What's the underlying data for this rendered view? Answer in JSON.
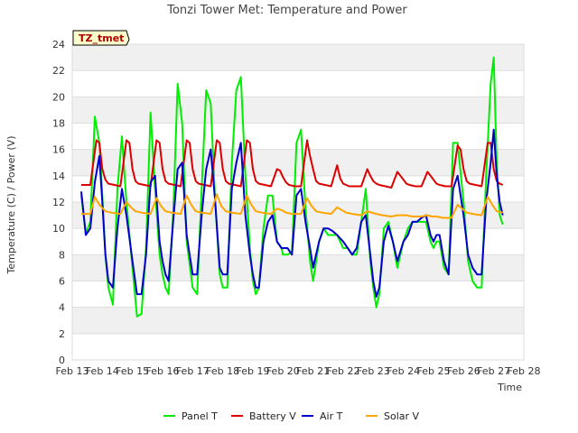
{
  "chart_data": {
    "type": "line",
    "title": "Tonzi Tower Met: Temperature and Power",
    "xlabel": "Time",
    "ylabel": "Temperature (C) / Power (V)",
    "site_label": "TZ_tmet",
    "ylim": [
      0,
      24
    ],
    "yticks": [
      0,
      2,
      4,
      6,
      8,
      10,
      12,
      14,
      16,
      18,
      20,
      22,
      24
    ],
    "xlim": [
      0,
      15
    ],
    "xticks": [
      "Feb 13",
      "Feb 14",
      "Feb 15",
      "Feb 16",
      "Feb 17",
      "Feb 18",
      "Feb 19",
      "Feb 20",
      "Feb 21",
      "Feb 22",
      "Feb 23",
      "Feb 24",
      "Feb 25",
      "Feb 26",
      "Feb 27",
      "Feb 28"
    ],
    "x_units": "days since Feb 13",
    "legend_position": "bottom",
    "series": [
      {
        "name": "Panel T",
        "color": "#00ee00",
        "x": [
          0.3,
          0.45,
          0.6,
          0.75,
          0.9,
          1.0,
          1.1,
          1.2,
          1.35,
          1.5,
          1.65,
          1.8,
          2.0,
          2.15,
          2.3,
          2.45,
          2.6,
          2.75,
          2.9,
          3.0,
          3.1,
          3.2,
          3.35,
          3.5,
          3.65,
          3.8,
          4.0,
          4.15,
          4.3,
          4.45,
          4.6,
          4.75,
          4.9,
          5.0,
          5.15,
          5.3,
          5.45,
          5.6,
          5.75,
          5.9,
          6.0,
          6.1,
          6.2,
          6.35,
          6.5,
          6.65,
          6.8,
          6.95,
          7.0,
          7.15,
          7.3,
          7.45,
          7.6,
          7.75,
          7.9,
          8.0,
          8.1,
          8.2,
          8.35,
          8.5,
          8.65,
          8.8,
          9.0,
          9.15,
          9.3,
          9.45,
          9.6,
          9.75,
          9.9,
          10.0,
          10.1,
          10.2,
          10.35,
          10.5,
          10.65,
          10.8,
          11.0,
          11.15,
          11.3,
          11.45,
          11.6,
          11.75,
          11.9,
          12.0,
          12.1,
          12.2,
          12.35,
          12.5,
          12.65,
          12.8,
          13.0,
          13.15,
          13.3,
          13.45,
          13.6,
          13.75,
          13.9,
          14.0,
          14.1,
          14.2,
          14.3
        ],
        "values": [
          12.5,
          9.6,
          10.5,
          18.5,
          16.5,
          12.5,
          8.0,
          5.5,
          4.2,
          13.0,
          17.0,
          12.0,
          7.0,
          3.3,
          3.5,
          8.5,
          18.8,
          13.0,
          8.0,
          6.5,
          5.5,
          5.0,
          11.0,
          21.0,
          18.0,
          9.0,
          5.5,
          5.0,
          13.0,
          20.5,
          19.5,
          12.0,
          6.5,
          5.5,
          5.5,
          15.0,
          20.5,
          21.5,
          14.0,
          8.5,
          6.0,
          5.0,
          5.5,
          10.0,
          12.5,
          12.5,
          9.0,
          8.5,
          8.0,
          8.0,
          8.2,
          16.5,
          17.5,
          11.5,
          7.5,
          6.0,
          7.5,
          9.0,
          10.0,
          9.5,
          9.5,
          9.5,
          8.5,
          8.5,
          8.0,
          8.0,
          10.5,
          13.0,
          7.5,
          5.5,
          4.0,
          5.0,
          10.0,
          10.5,
          9.0,
          7.0,
          9.0,
          10.0,
          10.5,
          10.5,
          10.5,
          10.5,
          9.0,
          8.5,
          9.0,
          9.0,
          7.0,
          6.5,
          16.5,
          16.5,
          12.0,
          7.5,
          6.0,
          5.5,
          5.5,
          14.0,
          21.0,
          23.0,
          15.0,
          11.0,
          10.3
        ]
      },
      {
        "name": "Battery V",
        "color": "#dd0000",
        "x": [
          0.3,
          0.6,
          0.8,
          0.9,
          1.0,
          1.1,
          1.2,
          1.4,
          1.6,
          1.8,
          1.9,
          2.0,
          2.1,
          2.2,
          2.4,
          2.6,
          2.8,
          2.9,
          3.0,
          3.1,
          3.2,
          3.4,
          3.6,
          3.8,
          3.9,
          4.0,
          4.1,
          4.2,
          4.4,
          4.6,
          4.8,
          4.9,
          5.0,
          5.1,
          5.2,
          5.4,
          5.6,
          5.8,
          5.9,
          6.0,
          6.1,
          6.2,
          6.4,
          6.6,
          6.8,
          6.9,
          7.0,
          7.1,
          7.2,
          7.4,
          7.6,
          7.8,
          7.9,
          8.0,
          8.1,
          8.2,
          8.4,
          8.6,
          8.8,
          8.9,
          9.0,
          9.1,
          9.2,
          9.4,
          9.6,
          9.8,
          9.9,
          10.0,
          10.1,
          10.2,
          10.4,
          10.6,
          10.8,
          10.9,
          11.0,
          11.1,
          11.2,
          11.4,
          11.6,
          11.8,
          11.9,
          12.0,
          12.1,
          12.2,
          12.4,
          12.6,
          12.8,
          12.9,
          13.0,
          13.1,
          13.2,
          13.4,
          13.6,
          13.8,
          13.9,
          14.0,
          14.1,
          14.2,
          14.3
        ],
        "values": [
          13.3,
          13.3,
          16.7,
          16.5,
          14.5,
          13.7,
          13.4,
          13.3,
          13.2,
          16.7,
          16.5,
          14.5,
          13.6,
          13.4,
          13.3,
          13.2,
          16.7,
          16.5,
          14.5,
          13.6,
          13.4,
          13.3,
          13.2,
          16.7,
          16.5,
          14.5,
          13.6,
          13.4,
          13.3,
          13.2,
          16.7,
          16.5,
          14.5,
          13.6,
          13.4,
          13.3,
          13.2,
          16.7,
          16.5,
          14.5,
          13.6,
          13.4,
          13.3,
          13.2,
          14.5,
          14.4,
          13.9,
          13.5,
          13.3,
          13.2,
          13.2,
          16.7,
          15.5,
          14.5,
          13.6,
          13.4,
          13.3,
          13.2,
          14.8,
          13.8,
          13.4,
          13.3,
          13.2,
          13.2,
          13.2,
          14.5,
          14.0,
          13.6,
          13.4,
          13.3,
          13.2,
          13.1,
          14.3,
          14.0,
          13.7,
          13.4,
          13.3,
          13.2,
          13.2,
          14.3,
          14.0,
          13.7,
          13.4,
          13.3,
          13.2,
          13.2,
          16.3,
          16.0,
          14.5,
          13.6,
          13.4,
          13.3,
          13.2,
          16.5,
          16.5,
          14.5,
          13.6,
          13.4,
          13.3
        ]
      },
      {
        "name": "Air T",
        "color": "#0000cc",
        "x": [
          0.3,
          0.45,
          0.6,
          0.75,
          0.9,
          1.0,
          1.1,
          1.2,
          1.35,
          1.5,
          1.65,
          1.8,
          2.0,
          2.15,
          2.3,
          2.45,
          2.6,
          2.75,
          2.9,
          3.0,
          3.1,
          3.2,
          3.35,
          3.5,
          3.65,
          3.8,
          4.0,
          4.15,
          4.3,
          4.45,
          4.6,
          4.75,
          4.9,
          5.0,
          5.15,
          5.3,
          5.45,
          5.6,
          5.75,
          5.9,
          6.0,
          6.1,
          6.2,
          6.35,
          6.5,
          6.65,
          6.8,
          6.95,
          7.0,
          7.15,
          7.3,
          7.45,
          7.6,
          7.75,
          7.9,
          8.0,
          8.1,
          8.2,
          8.35,
          8.5,
          8.65,
          8.8,
          9.0,
          9.15,
          9.3,
          9.45,
          9.6,
          9.75,
          9.9,
          10.0,
          10.1,
          10.2,
          10.35,
          10.5,
          10.65,
          10.8,
          11.0,
          11.15,
          11.3,
          11.45,
          11.6,
          11.75,
          11.9,
          12.0,
          12.1,
          12.2,
          12.35,
          12.5,
          12.65,
          12.8,
          13.0,
          13.15,
          13.3,
          13.45,
          13.6,
          13.75,
          13.9,
          14.0,
          14.1,
          14.2,
          14.3
        ],
        "values": [
          12.8,
          9.5,
          10.0,
          13.5,
          15.5,
          12.0,
          8.0,
          6.0,
          5.5,
          10.0,
          13.0,
          11.0,
          7.5,
          5.0,
          5.0,
          8.0,
          13.5,
          14.0,
          9.0,
          7.5,
          6.5,
          6.0,
          10.5,
          14.5,
          15.0,
          9.5,
          6.5,
          6.5,
          11.0,
          14.5,
          16.0,
          12.0,
          7.0,
          6.5,
          6.5,
          13.0,
          15.0,
          16.5,
          11.0,
          8.0,
          6.5,
          5.5,
          5.5,
          9.0,
          10.5,
          11.0,
          9.0,
          8.5,
          8.5,
          8.5,
          8.0,
          12.5,
          13.0,
          10.5,
          8.5,
          7.0,
          8.0,
          9.0,
          10.0,
          10.0,
          9.8,
          9.5,
          9.0,
          8.5,
          8.0,
          8.5,
          10.5,
          11.0,
          8.0,
          6.0,
          4.8,
          5.5,
          9.0,
          10.2,
          9.0,
          7.5,
          9.0,
          9.5,
          10.5,
          10.5,
          10.8,
          11.0,
          9.5,
          9.0,
          9.5,
          9.5,
          7.5,
          6.5,
          13.0,
          14.0,
          11.0,
          8.0,
          7.0,
          6.5,
          6.5,
          12.0,
          15.0,
          17.5,
          14.0,
          12.0,
          11.0
        ]
      },
      {
        "name": "Solar V",
        "color": "#ffa500",
        "x": [
          0.3,
          0.6,
          0.75,
          0.9,
          1.1,
          1.3,
          1.6,
          1.8,
          1.95,
          2.1,
          2.3,
          2.6,
          2.8,
          2.95,
          3.1,
          3.3,
          3.6,
          3.8,
          3.95,
          4.1,
          4.3,
          4.6,
          4.8,
          4.95,
          5.1,
          5.3,
          5.6,
          5.8,
          5.95,
          6.1,
          6.3,
          6.6,
          6.8,
          6.95,
          7.1,
          7.3,
          7.6,
          7.8,
          7.95,
          8.1,
          8.3,
          8.6,
          8.8,
          8.95,
          9.1,
          9.3,
          9.6,
          9.8,
          9.95,
          10.1,
          10.3,
          10.6,
          10.8,
          10.95,
          11.1,
          11.3,
          11.6,
          11.8,
          11.95,
          12.1,
          12.3,
          12.6,
          12.8,
          12.95,
          13.1,
          13.3,
          13.6,
          13.8,
          13.95,
          14.1,
          14.3
        ],
        "values": [
          11.1,
          11.1,
          12.4,
          11.8,
          11.3,
          11.2,
          11.1,
          12.0,
          11.6,
          11.3,
          11.2,
          11.1,
          12.3,
          11.7,
          11.3,
          11.2,
          11.1,
          12.5,
          11.8,
          11.3,
          11.2,
          11.1,
          12.6,
          11.7,
          11.3,
          11.2,
          11.1,
          12.5,
          11.8,
          11.3,
          11.2,
          11.1,
          11.5,
          11.4,
          11.2,
          11.1,
          11.1,
          12.3,
          11.7,
          11.3,
          11.2,
          11.1,
          11.6,
          11.4,
          11.2,
          11.1,
          11.0,
          11.3,
          11.2,
          11.1,
          11.0,
          10.9,
          11.0,
          11.0,
          11.0,
          10.9,
          10.9,
          11.0,
          10.9,
          10.9,
          10.8,
          10.8,
          11.8,
          11.5,
          11.2,
          11.1,
          11.0,
          12.4,
          11.8,
          11.3,
          11.2
        ]
      }
    ]
  }
}
